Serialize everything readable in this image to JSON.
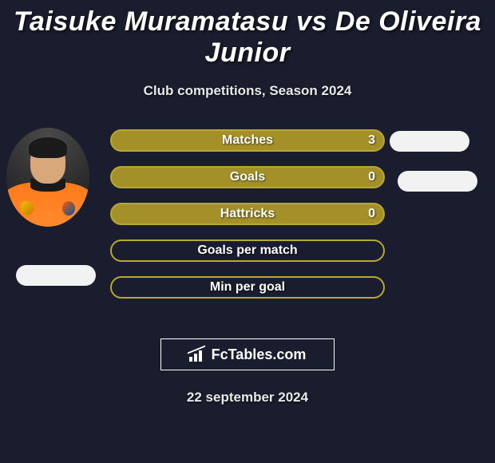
{
  "title": "Taisuke Muramatasu vs De Oliveira Junior",
  "subtitle": "Club competitions, Season 2024",
  "date": "22 september 2024",
  "brand": "FcTables.com",
  "colors": {
    "background": "#1a1d2e",
    "accent_fill": "#a39029",
    "accent_border": "#b8a730",
    "text": "#ffffff",
    "oval": "#f2f2f2",
    "logo_border": "#ffffff"
  },
  "stats": [
    {
      "label": "Matches",
      "value": "3",
      "filled": true
    },
    {
      "label": "Goals",
      "value": "0",
      "filled": true
    },
    {
      "label": "Hattricks",
      "value": "0",
      "filled": true
    },
    {
      "label": "Goals per match",
      "value": "",
      "filled": false
    },
    {
      "label": "Min per goal",
      "value": "",
      "filled": false
    }
  ]
}
